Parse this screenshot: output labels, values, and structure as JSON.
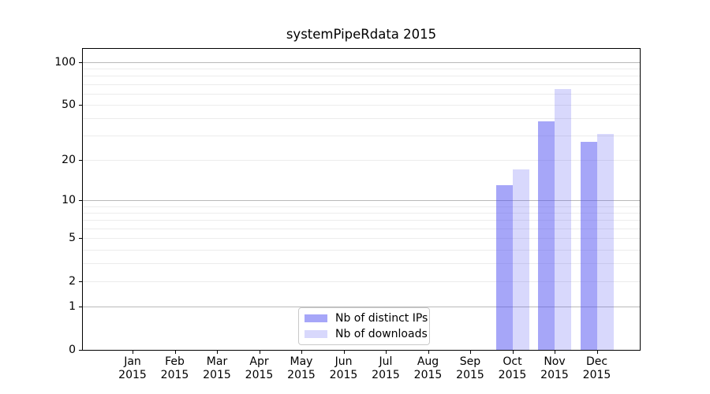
{
  "chart_data": {
    "type": "bar",
    "title": "systemPipeRdata 2015",
    "categories": [
      "Jan 2015",
      "Feb 2015",
      "Mar 2015",
      "Apr 2015",
      "May 2015",
      "Jun 2015",
      "Jul 2015",
      "Aug 2015",
      "Sep 2015",
      "Oct 2015",
      "Nov 2015",
      "Dec 2015"
    ],
    "series": [
      {
        "name": "Nb of distinct IPs",
        "color": "rgba(77,77,242,0.50)",
        "values": [
          0,
          0,
          0,
          0,
          0,
          0,
          0,
          0,
          0,
          13,
          38,
          27
        ]
      },
      {
        "name": "Nb of downloads",
        "color": "rgba(77,77,242,0.22)",
        "values": [
          0,
          0,
          0,
          0,
          0,
          0,
          0,
          0,
          0,
          17,
          65,
          31
        ]
      }
    ],
    "xlabel": "",
    "ylabel": "",
    "y_scale": "log1p",
    "ylim": [
      0,
      124
    ],
    "y_axis_ticks": [
      0,
      1,
      2,
      5,
      10,
      20,
      50,
      100
    ],
    "y_major_gridlines": [
      1,
      10,
      100
    ],
    "y_minor_gridlines": [
      2,
      3,
      4,
      5,
      6,
      7,
      8,
      9,
      20,
      30,
      40,
      50,
      60,
      70,
      80,
      90
    ],
    "grid": true,
    "legend_position": "lower center",
    "colors": {
      "axis": "#000000",
      "major_grid": "#b9b9b9",
      "minor_grid": "#ececec",
      "bar_distinct_ips": "rgba(77,77,242,0.50)",
      "bar_downloads": "rgba(77,77,242,0.22)",
      "legend_border": "#c9c9c9"
    }
  }
}
